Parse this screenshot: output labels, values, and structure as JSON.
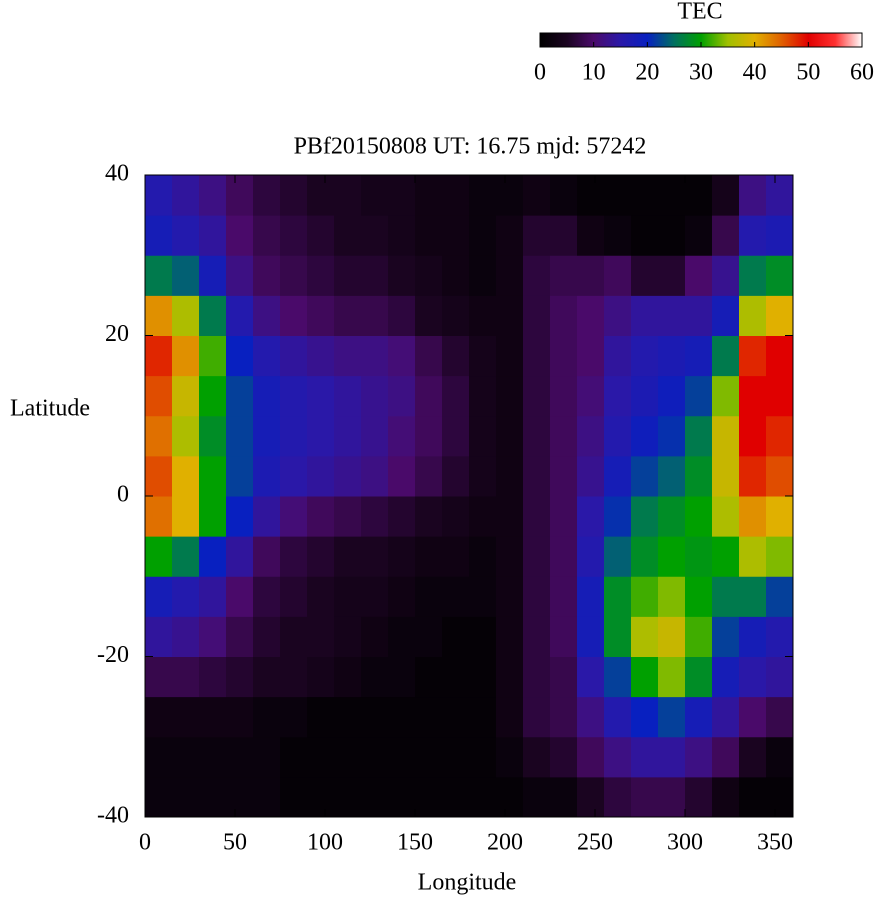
{
  "chart_data": {
    "type": "heatmap",
    "title": "PBf20150808  UT: 16.75  mjd: 57242",
    "x_label": "Longitude",
    "y_label": "Latitude",
    "colorbar_label": "TEC",
    "xlim": [
      0,
      360
    ],
    "xticks": [
      0,
      50,
      100,
      150,
      200,
      250,
      300,
      350
    ],
    "ylim": [
      -40,
      40
    ],
    "yticks": [
      -40,
      -20,
      0,
      20,
      40
    ],
    "zlim": [
      0,
      60
    ],
    "zticks": [
      0,
      10,
      20,
      30,
      40,
      50,
      60
    ],
    "colormap": [
      "#000000",
      "#1a0420",
      "#4a0a6a",
      "#2a18a8",
      "#0820c0",
      "#007060",
      "#00a000",
      "#a0c000",
      "#e0b000",
      "#e06000",
      "#e00000",
      "#ff3030",
      "#ffffff"
    ],
    "x": [
      0,
      15,
      30,
      45,
      60,
      75,
      90,
      105,
      120,
      135,
      150,
      165,
      180,
      195,
      210,
      225,
      240,
      255,
      270,
      285,
      300,
      315,
      330,
      345,
      360
    ],
    "y": [
      -40,
      -35,
      -30,
      -25,
      -20,
      -15,
      -10,
      -5,
      0,
      5,
      10,
      15,
      20,
      25,
      30,
      35,
      40
    ],
    "z": [
      [
        2,
        2,
        3,
        8,
        14,
        18,
        30,
        44,
        46,
        44,
        46,
        48,
        42,
        26,
        18,
        16
      ],
      [
        2,
        2,
        3,
        8,
        13,
        16,
        26,
        40,
        40,
        36,
        38,
        42,
        36,
        24,
        16,
        14
      ],
      [
        2,
        2,
        3,
        7,
        11,
        14,
        20,
        30,
        30,
        28,
        30,
        32,
        26,
        18,
        14,
        12
      ],
      [
        2,
        2,
        3,
        6,
        8,
        10,
        14,
        20,
        22,
        22,
        22,
        20,
        16,
        12,
        10,
        9
      ],
      [
        2,
        2,
        2,
        5,
        6,
        7,
        9,
        14,
        17,
        18,
        18,
        16,
        12,
        9,
        8,
        7
      ],
      [
        1,
        1,
        2,
        5,
        5,
        6,
        7,
        11,
        15,
        16,
        16,
        14,
        10,
        8,
        7,
        6
      ],
      [
        1,
        1,
        1,
        4,
        5,
        5,
        6,
        9,
        14,
        15,
        15,
        13,
        9,
        7,
        6,
        5
      ],
      [
        1,
        1,
        1,
        3,
        4,
        4,
        5,
        8,
        13,
        14,
        14,
        12,
        8,
        6,
        5,
        5
      ],
      [
        1,
        1,
        1,
        2,
        3,
        4,
        5,
        7,
        12,
        13,
        13,
        12,
        8,
        6,
        5,
        4
      ],
      [
        1,
        1,
        1,
        2,
        2,
        3,
        4,
        6,
        10,
        11,
        12,
        11,
        7,
        5,
        4,
        4
      ],
      [
        1,
        1,
        1,
        1,
        2,
        2,
        3,
        5,
        8,
        9,
        9,
        8,
        5,
        4,
        3,
        3
      ],
      [
        1,
        1,
        1,
        1,
        1,
        2,
        3,
        4,
        6,
        7,
        7,
        6,
        4,
        3,
        3,
        3
      ],
      [
        1,
        1,
        1,
        1,
        1,
        2,
        2,
        3,
        4,
        4,
        4,
        4,
        3,
        2,
        2,
        2
      ],
      [
        1,
        2,
        3,
        3,
        3,
        3,
        3,
        3,
        3,
        3,
        3,
        3,
        3,
        3,
        3,
        2
      ],
      [
        2,
        5,
        7,
        7,
        7,
        7,
        7,
        7,
        7,
        7,
        7,
        7,
        7,
        7,
        6,
        3
      ],
      [
        2,
        6,
        8,
        8,
        9,
        9,
        9,
        9,
        9,
        9,
        9,
        9,
        9,
        8,
        6,
        2
      ],
      [
        5,
        9,
        12,
        15,
        18,
        18,
        16,
        15,
        13,
        12,
        11,
        10,
        10,
        8,
        3,
        1
      ],
      [
        7,
        12,
        16,
        22,
        28,
        28,
        24,
        21,
        18,
        16,
        15,
        14,
        12,
        9,
        2,
        1
      ],
      [
        8,
        14,
        20,
        30,
        36,
        32,
        28,
        26,
        22,
        19,
        17,
        16,
        14,
        6,
        1,
        1
      ],
      [
        8,
        14,
        22,
        34,
        38,
        34,
        30,
        28,
        24,
        21,
        19,
        17,
        14,
        6,
        1,
        1
      ],
      [
        6,
        12,
        18,
        28,
        32,
        30,
        29,
        30,
        28,
        26,
        22,
        18,
        14,
        10,
        2,
        1
      ],
      [
        3,
        9,
        14,
        18,
        22,
        26,
        30,
        36,
        38,
        38,
        34,
        26,
        18,
        13,
        8,
        4
      ],
      [
        1,
        5,
        10,
        15,
        18,
        26,
        36,
        42,
        48,
        50,
        50,
        48,
        36,
        26,
        16,
        12
      ],
      [
        1,
        2,
        8,
        14,
        16,
        22,
        34,
        40,
        46,
        48,
        50,
        50,
        40,
        28,
        17,
        14
      ]
    ]
  }
}
